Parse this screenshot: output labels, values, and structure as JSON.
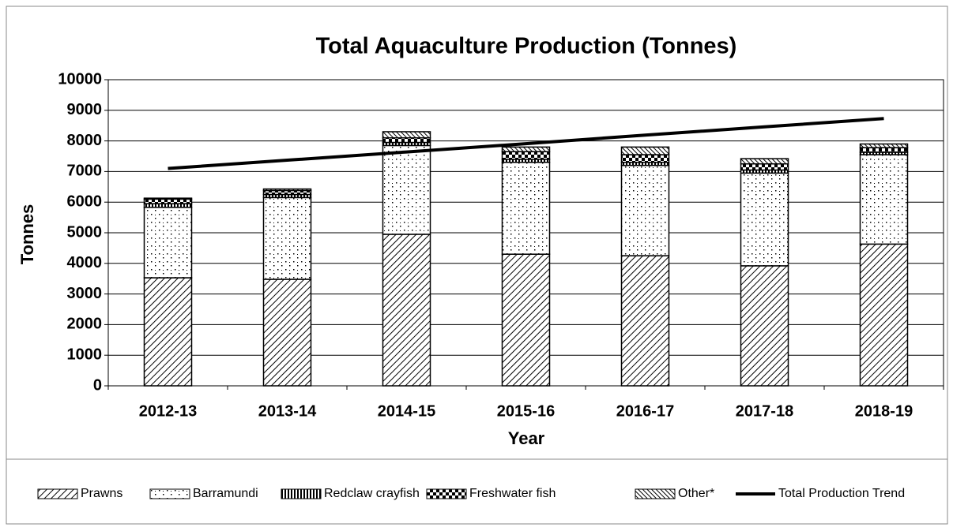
{
  "chart_data": {
    "type": "bar",
    "stacked": true,
    "title": "Total Aquaculture Production (Tonnes)",
    "x_label": "Year",
    "y_label": "Tonnes",
    "categories": [
      "2012-13",
      "2013-14",
      "2014-15",
      "2015-16",
      "2016-17",
      "2017-18",
      "2018-19"
    ],
    "series": [
      {
        "name": "Prawns",
        "values": [
          3530,
          3480,
          4950,
          4300,
          4250,
          3920,
          4630
        ]
      },
      {
        "name": "Barramundi",
        "values": [
          2300,
          2670,
          2900,
          3000,
          2950,
          3030,
          2920
        ]
      },
      {
        "name": "Redclaw crayfish",
        "values": [
          120,
          100,
          100,
          100,
          100,
          100,
          80
        ]
      },
      {
        "name": "Freshwater fish",
        "values": [
          150,
          130,
          150,
          250,
          250,
          200,
          150
        ]
      },
      {
        "name": "Other*",
        "values": [
          30,
          50,
          200,
          150,
          250,
          170,
          120
        ]
      },
      {
        "name": "Total Production Trend",
        "type": "line",
        "color": "#000000",
        "values": [
          7100,
          7370,
          7640,
          7910,
          8190,
          8460,
          8730
        ]
      }
    ],
    "ylim": [
      0,
      10000
    ],
    "yticks": [
      0,
      1000,
      2000,
      3000,
      4000,
      5000,
      6000,
      7000,
      8000,
      9000,
      10000
    ],
    "grid": true,
    "legend": "bottom"
  }
}
